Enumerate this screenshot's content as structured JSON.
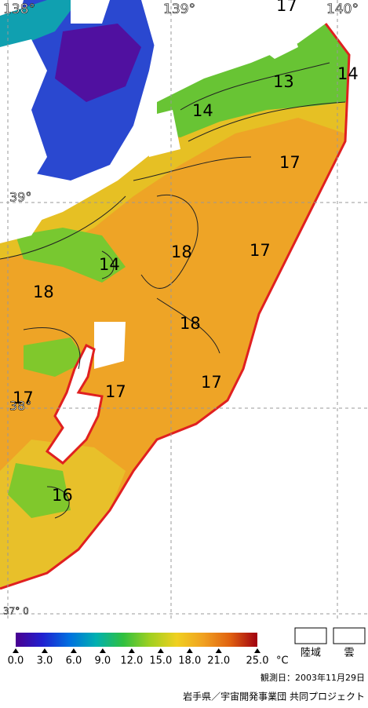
{
  "map": {
    "longitude_labels": [
      "138°",
      "139°",
      "140°"
    ],
    "latitude_labels": [
      "39°",
      "38°",
      "37° 0"
    ],
    "contour_labels": [
      "17",
      "13",
      "14",
      "14",
      "17",
      "17",
      "18",
      "14",
      "18",
      "18",
      "17",
      "17",
      "17",
      "16"
    ],
    "colorbar": {
      "ticks": [
        {
          "value": 0,
          "label": "0.0"
        },
        {
          "value": 3,
          "label": "3.0"
        },
        {
          "value": 6,
          "label": "6.0"
        },
        {
          "value": 9,
          "label": "9.0"
        },
        {
          "value": 12,
          "label": "12.0"
        },
        {
          "value": 15,
          "label": "15.0"
        },
        {
          "value": 18,
          "label": "18.0"
        },
        {
          "value": 21,
          "label": "21.0"
        },
        {
          "value": 25,
          "label": "25.0"
        }
      ],
      "colors": [
        "#4a0090",
        "#2020d0",
        "#0070e0",
        "#00b0b0",
        "#30c040",
        "#a0d020",
        "#f0d020",
        "#f0a020",
        "#e06010",
        "#a00010"
      ],
      "unit": "°C"
    },
    "legend": {
      "land": "陸域",
      "cloud": "雲"
    },
    "observation_date": "観測日：2003年11月29日",
    "credit": "岩手県／宇宙開発事業団 共同プロジェクト"
  }
}
